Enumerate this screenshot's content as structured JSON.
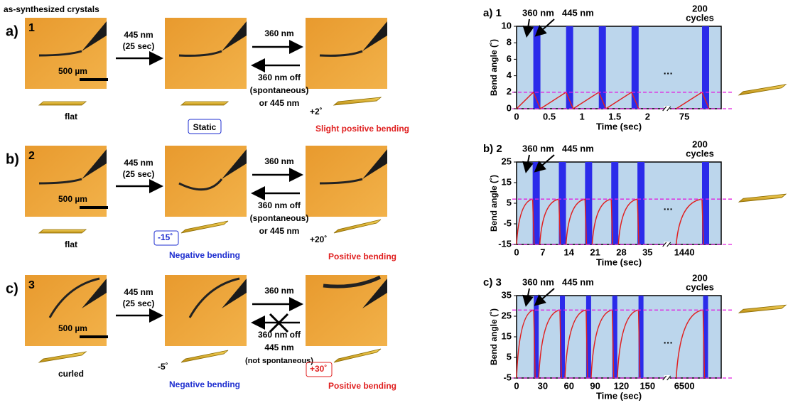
{
  "left": {
    "header": "as-synthesized crystals",
    "rows": [
      {
        "label": "a)",
        "sample": "1",
        "scale_bar": "500 µm",
        "irradiation": [
          "445 nm",
          "(25 sec)"
        ],
        "forward": "360 nm",
        "reverse": [
          "360 nm off",
          "(spontaneous)",
          "or 445 nm"
        ],
        "states": [
          "flat",
          "Static",
          "Slight positive bending"
        ],
        "angle_3": "+2˚"
      },
      {
        "label": "b)",
        "sample": "2",
        "scale_bar": "500 µm",
        "irradiation": [
          "445 nm",
          "(25 sec)"
        ],
        "forward": "360 nm",
        "reverse": [
          "360 nm off",
          "(spontaneous)",
          "or 445 nm"
        ],
        "states": [
          "flat",
          "Negative bending",
          "Positive bending"
        ],
        "angle_2": "-15˚",
        "angle_3": "+20˚"
      },
      {
        "label": "c)",
        "sample": "3",
        "scale_bar": "500 µm",
        "irradiation": [
          "445 nm",
          "(25 sec)"
        ],
        "forward": "360 nm",
        "reverse": [
          "360 nm off",
          "445 nm",
          "(not spontaneous)"
        ],
        "states": [
          "curled",
          "Negative bending",
          "Positive bending"
        ],
        "angle_2": "-5˚",
        "angle_3": "+30˚"
      }
    ]
  },
  "chart_data": [
    {
      "type": "line",
      "label": "a) 1",
      "annotations": [
        "360 nm",
        "445 nm"
      ],
      "cycles_note": [
        "200",
        "cycles"
      ],
      "ylabel": "Bend angle (˚)",
      "xlabel": "Time (sec)",
      "ylim": [
        0,
        10
      ],
      "yticks": [
        0,
        2,
        4,
        6,
        8,
        10
      ],
      "x_tick_labels": [
        "0",
        "0.5",
        "1",
        "1.5",
        "2",
        "75"
      ],
      "gap_label": "…",
      "reference_lines": [
        2,
        0
      ],
      "shape": "linear"
    },
    {
      "type": "line",
      "label": "b) 2",
      "annotations": [
        "360 nm",
        "445 nm"
      ],
      "cycles_note": [
        "200",
        "cycles"
      ],
      "ylabel": "Bend angle (˚)",
      "xlabel": "Time (sec)",
      "ylim": [
        -15,
        25
      ],
      "yticks": [
        -15,
        -5,
        5,
        15,
        25
      ],
      "x_tick_labels": [
        "0",
        "7",
        "14",
        "21",
        "28",
        "35",
        "1440"
      ],
      "gap_label": "…",
      "reference_lines": [
        7,
        -15
      ],
      "shape": "curve"
    },
    {
      "type": "line",
      "label": "c) 3",
      "annotations": [
        "360 nm",
        "445 nm"
      ],
      "cycles_note": [
        "200",
        "cycles"
      ],
      "ylabel": "Bend angle (˚)",
      "xlabel": "Time (sec)",
      "ylim": [
        -5,
        35
      ],
      "yticks": [
        -5,
        5,
        15,
        25,
        35
      ],
      "x_tick_labels": [
        "0",
        "30",
        "60",
        "90",
        "120",
        "150",
        "6500"
      ],
      "gap_label": "…",
      "reference_lines": [
        28,
        -5
      ],
      "shape": "curve"
    }
  ]
}
